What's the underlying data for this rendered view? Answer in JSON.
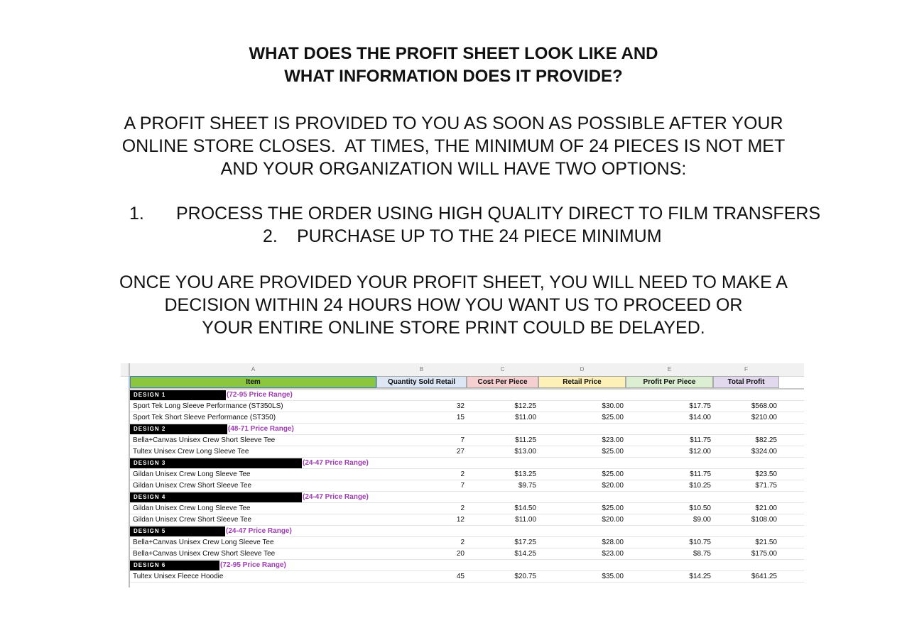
{
  "header": {
    "title_lines": [
      "WHAT DOES THE PROFIT SHEET LOOK LIKE AND",
      "WHAT INFORMATION DOES IT PROVIDE?"
    ]
  },
  "intro_lines": [
    "A PROFIT SHEET IS PROVIDED TO YOU AS SOON AS POSSIBLE AFTER YOUR",
    "ONLINE STORE CLOSES.  AT TIMES, THE MINIMUM OF 24 PIECES IS NOT MET",
    "AND YOUR ORGANIZATION WILL HAVE TWO OPTIONS:"
  ],
  "options": [
    {
      "number": "1.",
      "text": "PROCESS THE ORDER USING HIGH QUALITY DIRECT TO FILM TRANSFERS"
    },
    {
      "number": "2.",
      "text": "PURCHASE UP TO THE 24 PIECE MINIMUM"
    }
  ],
  "closing_lines": [
    "ONCE YOU ARE PROVIDED YOUR PROFIT SHEET, YOU WILL NEED TO MAKE A",
    "DECISION WITHIN 24 HOURS HOW YOU WANT US TO PROCEED OR",
    "YOUR ENTIRE ONLINE STORE PRINT COULD BE DELAYED."
  ],
  "table": {
    "column_letters": [
      "A",
      "B",
      "C",
      "D",
      "E",
      "F"
    ],
    "headers": [
      "Item",
      "Quantity Sold Retail",
      "Cost Per Piece",
      "Retail Price",
      "Profit Per Piece",
      "Total Profit"
    ],
    "rows": [
      {
        "design": "DESIGN 1",
        "range": "(72-95 Price Range)"
      },
      {
        "cells": [
          "Sport Tek Long Sleeve Performance (ST350LS)",
          "32",
          "$12.25",
          "$30.00",
          "$17.75",
          "$568.00"
        ]
      },
      {
        "cells": [
          "Sport Tek Short Sleeve Performance (ST350)",
          "15",
          "$11.00",
          "$25.00",
          "$14.00",
          "$210.00"
        ]
      },
      {
        "design": "DESIGN 2",
        "range": "(48-71 Price Range)"
      },
      {
        "cells": [
          "Bella+Canvas Unisex Crew Short Sleeve Tee",
          "7",
          "$11.25",
          "$23.00",
          "$11.75",
          "$82.25"
        ]
      },
      {
        "cells": [
          "Tultex Unisex Crew Long Sleeve Tee",
          "27",
          "$13.00",
          "$25.00",
          "$12.00",
          "$324.00"
        ]
      },
      {
        "design": "DESIGN 3",
        "range": "(24-47 Price Range)"
      },
      {
        "cells": [
          "Gildan Unisex Crew Long Sleeve Tee",
          "2",
          "$13.25",
          "$25.00",
          "$11.75",
          "$23.50"
        ]
      },
      {
        "cells": [
          "Gildan Unisex Crew Short Sleeve Tee",
          "7",
          "$9.75",
          "$20.00",
          "$10.25",
          "$71.75"
        ]
      },
      {
        "design": "DESIGN 4",
        "range": "(24-47 Price Range)"
      },
      {
        "cells": [
          "Gildan Unisex Crew Long Sleeve Tee",
          "2",
          "$14.50",
          "$25.00",
          "$10.50",
          "$21.00"
        ]
      },
      {
        "cells": [
          "Gildan Unisex Crew Short Sleeve Tee",
          "12",
          "$11.00",
          "$20.00",
          "$9.00",
          "$108.00"
        ]
      },
      {
        "design": "DESIGN 5",
        "range": "(24-47 Price Range)"
      },
      {
        "cells": [
          "Bella+Canvas Unisex Crew Long Sleeve Tee",
          "2",
          "$17.25",
          "$28.00",
          "$10.75",
          "$21.50"
        ]
      },
      {
        "cells": [
          "Bella+Canvas Unisex Crew Short Sleeve Tee",
          "20",
          "$14.25",
          "$23.00",
          "$8.75",
          "$175.00"
        ]
      },
      {
        "design": "DESIGN 6",
        "range": "(72-95 Price Range)"
      },
      {
        "cells": [
          "Tultex Unisex Fleece Hoodie",
          "45",
          "$20.75",
          "$35.00",
          "$14.25",
          "$641.25"
        ]
      }
    ]
  }
}
